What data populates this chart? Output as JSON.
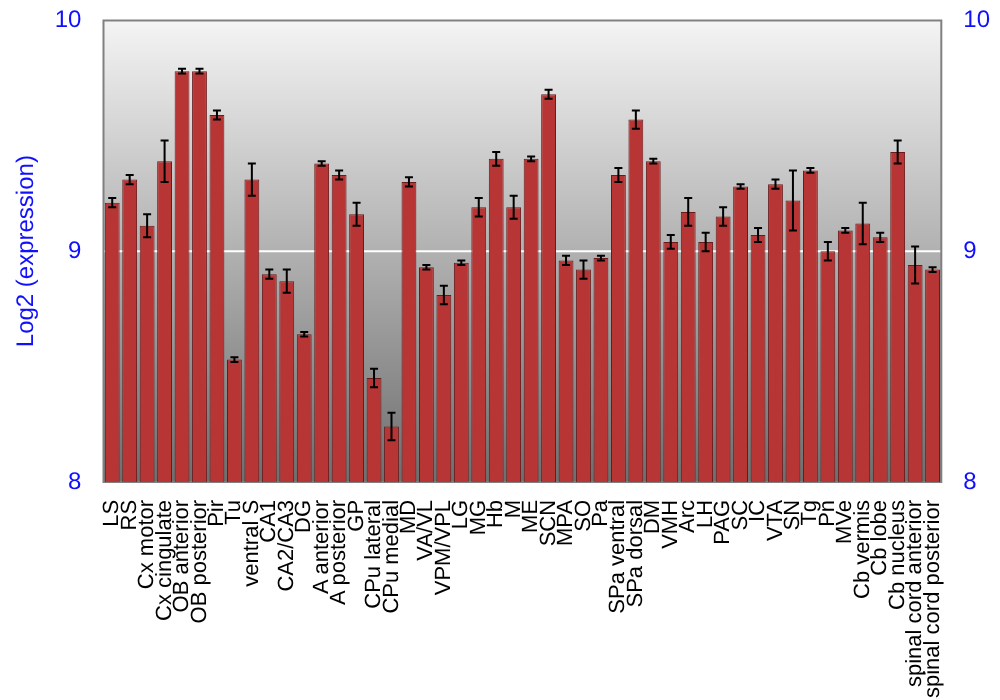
{
  "chart_data": {
    "type": "bar",
    "ylabel": "Log2 (expression)",
    "categories": [
      "LS",
      "RS",
      "Cx motor",
      "Cx cingulate",
      "OB anterior",
      "OB posterior",
      "Pir",
      "Tu",
      "ventral S",
      "CA1",
      "CA2/CA3",
      "DG",
      "A anterior",
      "A posterior",
      "GP",
      "CPu lateral",
      "CPu medial",
      "MD",
      "VA/VL",
      "VPM/VPL",
      "LG",
      "MG",
      "Hb",
      "M",
      "ME",
      "SCN",
      "MPA",
      "SO",
      "Pa",
      "SPa ventral",
      "SPa dorsal",
      "DM",
      "VMH",
      "Arc",
      "LH",
      "PAG",
      "SC",
      "IC",
      "VTA",
      "SN",
      "Tg",
      "Pn",
      "MVe",
      "Cb vermis",
      "Cb lobe",
      "Cb nucleus",
      "spinal cord anterior",
      "spinal cord posterior"
    ],
    "values": [
      9.21,
      9.31,
      9.11,
      9.39,
      9.78,
      9.78,
      9.59,
      8.53,
      9.31,
      8.9,
      8.87,
      8.64,
      9.38,
      9.33,
      9.16,
      8.45,
      8.24,
      9.3,
      8.93,
      8.81,
      8.95,
      9.19,
      9.4,
      9.19,
      9.4,
      9.68,
      8.96,
      8.92,
      8.97,
      9.33,
      9.57,
      9.39,
      9.04,
      9.17,
      9.04,
      9.15,
      9.28,
      9.07,
      9.29,
      9.22,
      9.35,
      9.0,
      9.09,
      9.12,
      9.06,
      9.43,
      8.94,
      8.92
    ],
    "errors": [
      0.02,
      0.02,
      0.05,
      0.09,
      0.01,
      0.01,
      0.02,
      0.01,
      0.07,
      0.02,
      0.05,
      0.01,
      0.01,
      0.02,
      0.05,
      0.04,
      0.06,
      0.02,
      0.01,
      0.04,
      0.01,
      0.04,
      0.03,
      0.05,
      0.01,
      0.02,
      0.02,
      0.04,
      0.01,
      0.03,
      0.04,
      0.01,
      0.03,
      0.06,
      0.04,
      0.04,
      0.01,
      0.03,
      0.02,
      0.13,
      0.01,
      0.04,
      0.01,
      0.09,
      0.02,
      0.05,
      0.08,
      0.01
    ],
    "color": "#b73535",
    "ylim": [
      8,
      10
    ],
    "yticks": [
      8,
      9,
      10
    ],
    "y2lim": [
      8,
      10
    ],
    "y2ticks": [
      8,
      9,
      10
    ],
    "grid": "y"
  }
}
